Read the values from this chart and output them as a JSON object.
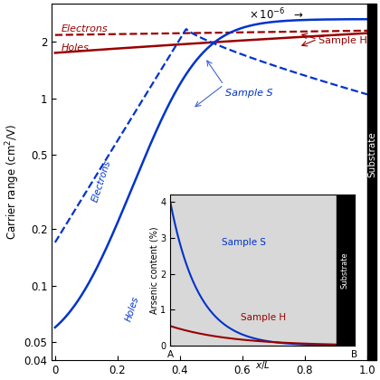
{
  "blue_color": "#0033cc",
  "red_color": "#990000",
  "yticks": [
    0.04,
    0.05,
    0.1,
    0.2,
    0.5,
    1.0,
    2.0
  ],
  "ytick_labels": [
    "0.04",
    "0.05",
    "0.1",
    "0.2",
    "0.5",
    "1",
    "2"
  ],
  "xticks": [
    0,
    0.2,
    0.4,
    0.6,
    0.8,
    1.0
  ],
  "xtick_labels": [
    "0",
    "0.2",
    "0.4",
    "0.6",
    "0.8",
    "1.0"
  ]
}
